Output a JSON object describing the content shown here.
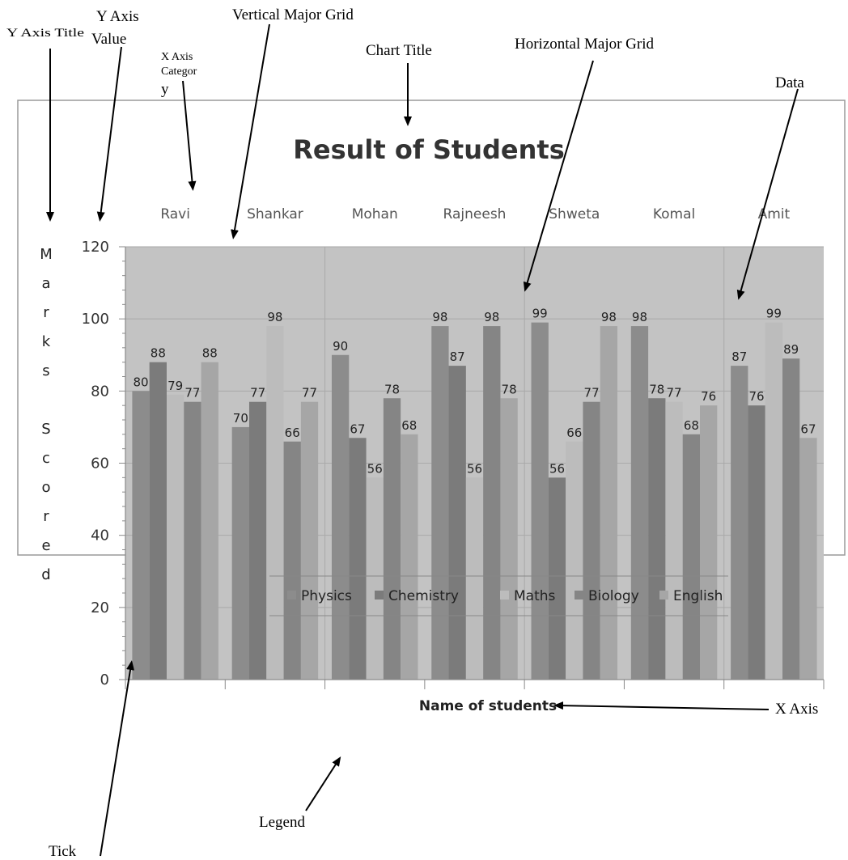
{
  "annotations": {
    "y_axis_title": "Y Axis Title",
    "y_axis_value": [
      "Y Axis",
      "Value"
    ],
    "x_axis_category": [
      "X Axis",
      "Categor",
      "y"
    ],
    "vertical_major_grid": "Vertical Major Grid",
    "chart_title": "Chart Title",
    "horizontal_major_grid": "Horizontal Major Grid",
    "data": "Data",
    "x_axis": "X Axis",
    "tick": "Tick",
    "legend": "Legend"
  },
  "chart_data": {
    "type": "bar",
    "title": "Result of Students",
    "xlabel": "Name of students",
    "ylabel": "Marks Scored",
    "ylabel_letters": [
      "M",
      "a",
      "r",
      "k",
      "s",
      "",
      "S",
      "c",
      "o",
      "r",
      "e",
      "d"
    ],
    "ylim": [
      0,
      120
    ],
    "y_ticks": [
      "0",
      "20",
      "40",
      "60",
      "80",
      "100",
      "120"
    ],
    "categories": [
      "Ravi",
      "Shankar",
      "Mohan",
      "Rajneesh",
      "Shweta",
      "Komal",
      "Amit"
    ],
    "category_position": "top",
    "grid": true,
    "legend_position": "bottom",
    "series": [
      {
        "name": "Physics",
        "color": "#8c8c8c",
        "values": [
          80,
          70,
          90,
          98,
          99,
          98,
          87
        ]
      },
      {
        "name": "Chemistry",
        "color": "#7b7b7b",
        "values": [
          88,
          77,
          67,
          87,
          56,
          78,
          76
        ]
      },
      {
        "name": "Maths",
        "color": "#bcbcbc",
        "values": [
          79,
          98,
          56,
          56,
          66,
          77,
          99
        ]
      },
      {
        "name": "Biology",
        "color": "#858585",
        "values": [
          77,
          66,
          78,
          98,
          77,
          68,
          89
        ]
      },
      {
        "name": "English",
        "color": "#a6a6a6",
        "values": [
          88,
          77,
          68,
          78,
          98,
          76,
          67
        ]
      }
    ],
    "plot_background": "#c3c3c3"
  }
}
